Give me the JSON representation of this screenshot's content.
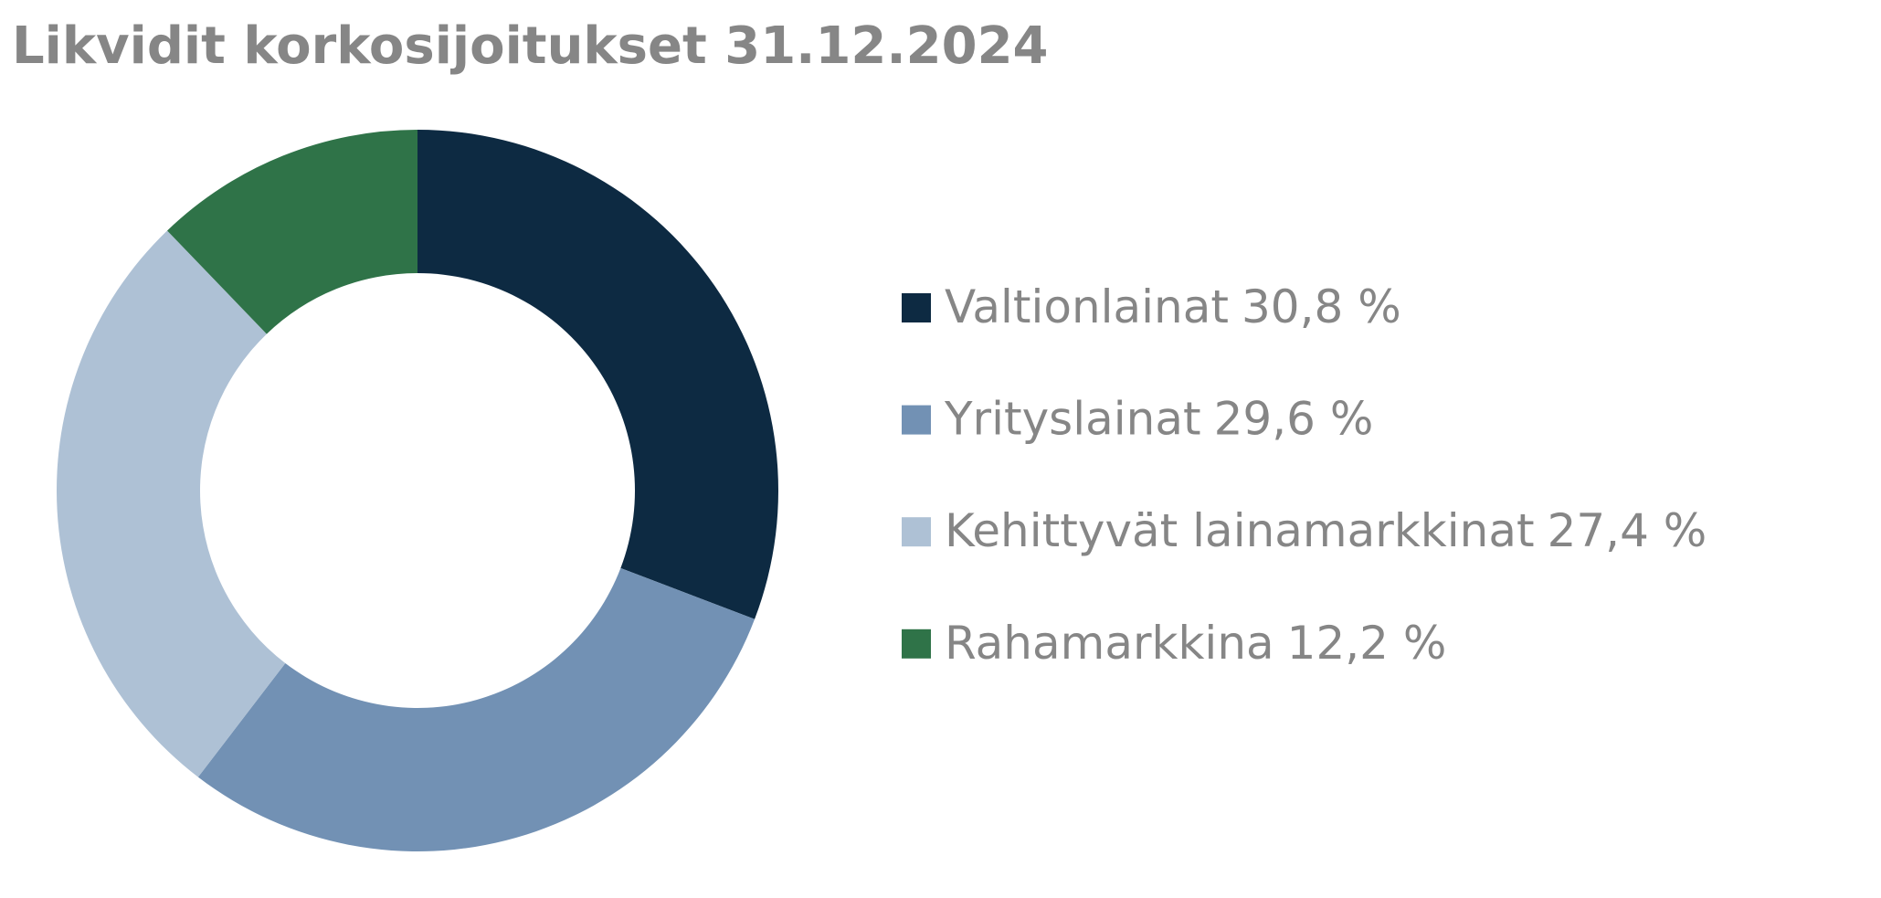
{
  "chart_data": {
    "type": "donut",
    "title": "Likvidit korkosijoitukset 31.12.2024",
    "categories": [
      "Valtionlainat",
      "Yrityslainat",
      "Kehittyvät lainamarkkinat",
      "Rahamarkkina"
    ],
    "values": [
      30.8,
      29.6,
      27.4,
      12.2
    ],
    "value_labels": [
      "30,8 %",
      "29,6 %",
      "27,4 %",
      "12,2 %"
    ],
    "colors": [
      "#0d2a42",
      "#7291b4",
      "#aec1d5",
      "#2f7348"
    ],
    "legend": "right"
  }
}
